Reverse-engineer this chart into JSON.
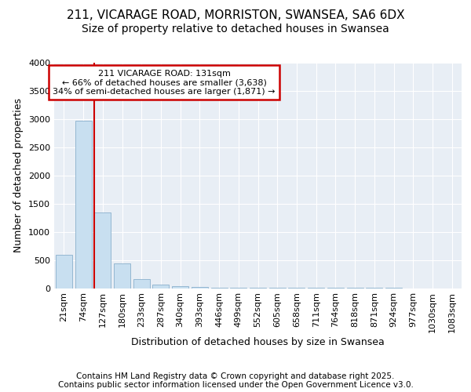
{
  "title1": "211, VICARAGE ROAD, MORRISTON, SWANSEA, SA6 6DX",
  "title2": "Size of property relative to detached houses in Swansea",
  "xlabel": "Distribution of detached houses by size in Swansea",
  "ylabel": "Number of detached properties",
  "categories": [
    "21sqm",
    "74sqm",
    "127sqm",
    "180sqm",
    "233sqm",
    "287sqm",
    "340sqm",
    "393sqm",
    "446sqm",
    "499sqm",
    "552sqm",
    "605sqm",
    "658sqm",
    "711sqm",
    "764sqm",
    "818sqm",
    "871sqm",
    "924sqm",
    "977sqm",
    "1030sqm",
    "1083sqm"
  ],
  "values": [
    595,
    2975,
    1345,
    445,
    160,
    68,
    32,
    18,
    10,
    7,
    5,
    4,
    3,
    2,
    2,
    1,
    1,
    1,
    0,
    0,
    0
  ],
  "bar_color": "#c8dff0",
  "bar_edge_color": "#8ab0cc",
  "highlight_index": 2,
  "red_line_color": "#cc0000",
  "annotation_title": "211 VICARAGE ROAD: 131sqm",
  "annotation_line1": "← 66% of detached houses are smaller (3,638)",
  "annotation_line2": "34% of semi-detached houses are larger (1,871) →",
  "annotation_border_color": "#cc0000",
  "ylim": [
    0,
    4000
  ],
  "yticks": [
    0,
    500,
    1000,
    1500,
    2000,
    2500,
    3000,
    3500,
    4000
  ],
  "footer1": "Contains HM Land Registry data © Crown copyright and database right 2025.",
  "footer2": "Contains public sector information licensed under the Open Government Licence v3.0.",
  "bg_color": "#ffffff",
  "plot_bg_color": "#e8eef5",
  "title_fontsize": 11,
  "subtitle_fontsize": 10,
  "axis_label_fontsize": 9,
  "tick_fontsize": 8,
  "footer_fontsize": 7.5
}
